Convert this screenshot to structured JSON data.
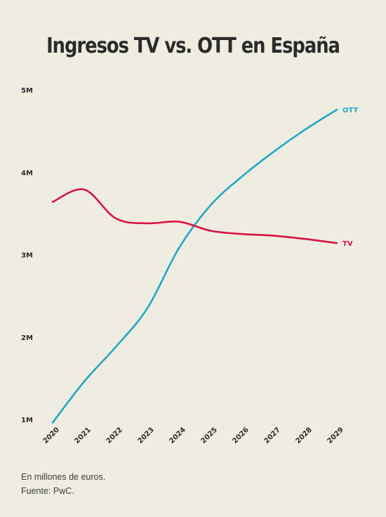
{
  "title": "Ingresos TV vs. OTT en España",
  "footer": {
    "note": "En millones de euros.",
    "source": "Fuente: PwC."
  },
  "colors": {
    "background": "#efede2",
    "tv": "#d8123f",
    "ott": "#21a7c4",
    "text": "#2b2b2b"
  },
  "chart_data": {
    "type": "line",
    "title": "Ingresos TV vs. OTT en España",
    "x": [
      2020,
      2021,
      2022,
      2023,
      2024,
      2025,
      2026,
      2027,
      2028,
      2029
    ],
    "x_tick_labels": [
      "2020",
      "2021",
      "2022",
      "2023",
      "2024",
      "2025",
      "2026",
      "2027",
      "2028",
      "2029"
    ],
    "y_ticks": [
      1000000,
      2000000,
      3000000,
      4000000,
      5000000
    ],
    "y_tick_labels": [
      "1M",
      "2M",
      "3M",
      "4M",
      "5M"
    ],
    "ylim": [
      1000000,
      5000000
    ],
    "grid": false,
    "series": [
      {
        "name": "OTT",
        "color": "#21a7c4",
        "values": [
          960000,
          1460000,
          1880000,
          2350000,
          3080000,
          3600000,
          3950000,
          4250000,
          4520000,
          4760000
        ]
      },
      {
        "name": "TV",
        "color": "#d8123f",
        "values": [
          3640000,
          3790000,
          3440000,
          3380000,
          3400000,
          3290000,
          3250000,
          3230000,
          3190000,
          3140000
        ]
      }
    ]
  }
}
